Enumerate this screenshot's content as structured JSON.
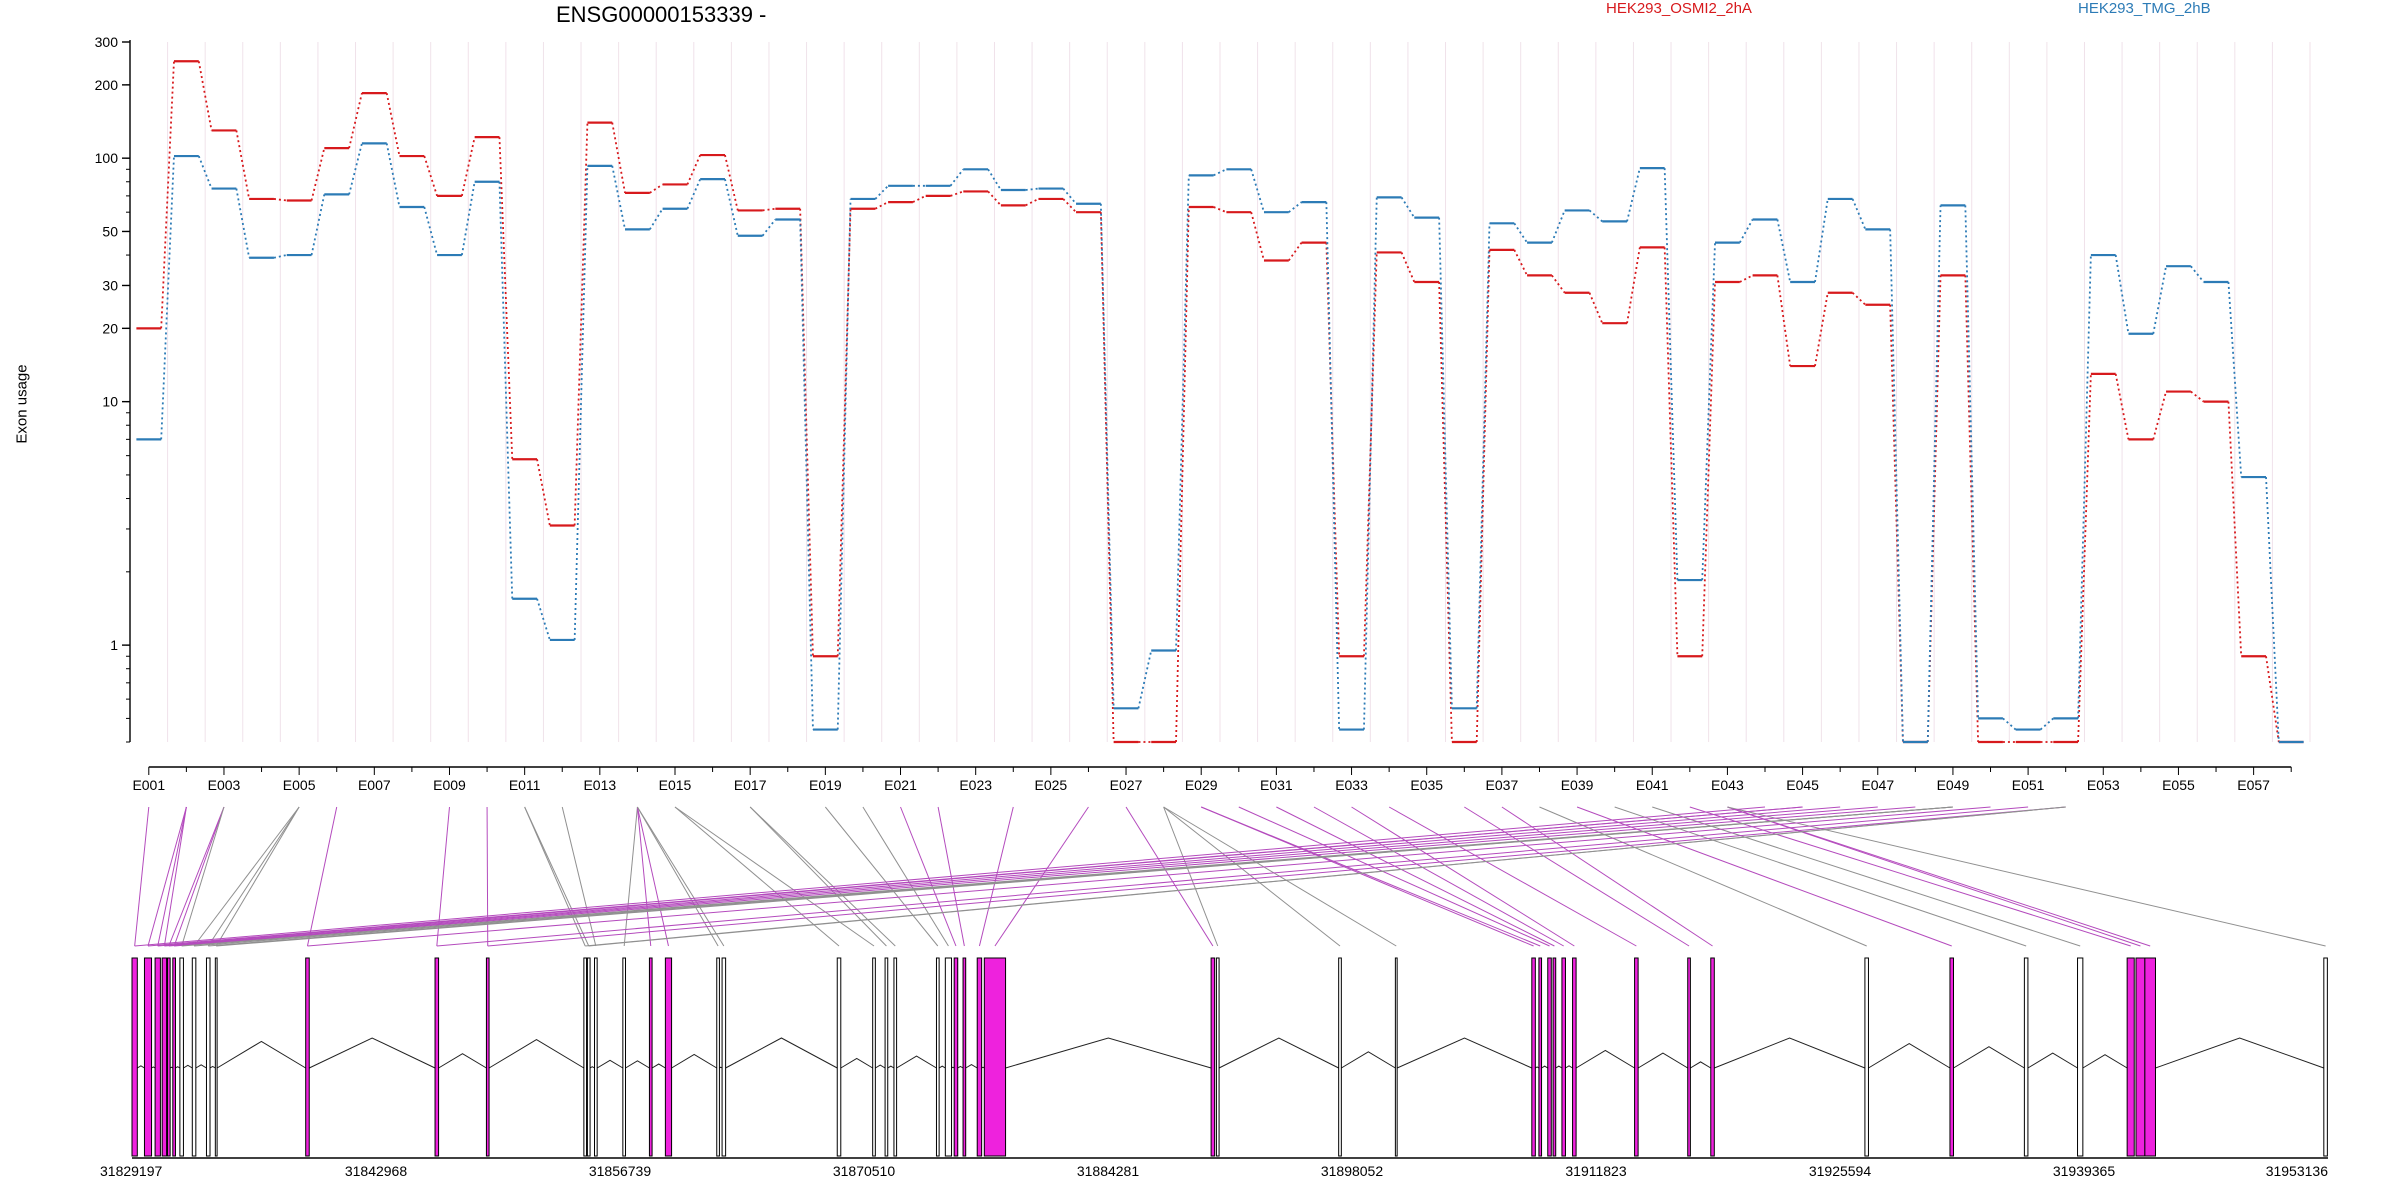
{
  "chart_data": {
    "type": "line",
    "title": "ENSG00000153339 -",
    "ylabel": "Exon usage",
    "xlabel": "",
    "scale_y": "log",
    "ylim": [
      0.4,
      300
    ],
    "y_ticks": [
      1,
      10,
      20,
      30,
      50,
      100,
      200,
      300
    ],
    "y_tick_labels": [
      "1",
      "10",
      "20",
      "30",
      "50",
      "100",
      "200",
      "300"
    ],
    "legend_placement": "top",
    "categories": [
      "E001",
      "E002",
      "E003",
      "E004",
      "E005",
      "E006",
      "E007",
      "E008",
      "E009",
      "E010",
      "E011",
      "E012",
      "E013",
      "E014",
      "E015",
      "E016",
      "E017",
      "E018",
      "E019",
      "E020",
      "E021",
      "E022",
      "E023",
      "E024",
      "E025",
      "E026",
      "E027",
      "E028",
      "E029",
      "E030",
      "E031",
      "E032",
      "E033",
      "E034",
      "E035",
      "E036",
      "E037",
      "E038",
      "E039",
      "E040",
      "E041",
      "E042",
      "E043",
      "E044",
      "E045",
      "E046",
      "E047",
      "E048",
      "E049",
      "E050",
      "E051",
      "E052",
      "E053",
      "E054",
      "E055",
      "E056",
      "E057",
      "E058"
    ],
    "x_tick_labels": [
      "E001",
      "E003",
      "E005",
      "E007",
      "E009",
      "E011",
      "E013",
      "E015",
      "E017",
      "E019",
      "E021",
      "E023",
      "E025",
      "E027",
      "E029",
      "E031",
      "E033",
      "E035",
      "E037",
      "E039",
      "E041",
      "E043",
      "E045",
      "E047",
      "E049",
      "E051",
      "E053",
      "E055",
      "E057"
    ],
    "series": [
      {
        "name": "HEK293_OSMI2_2hA",
        "color": "#d7191c",
        "values": [
          20,
          250,
          130,
          68,
          67,
          110,
          185,
          102,
          70,
          122,
          5.8,
          3.1,
          140,
          72,
          78,
          103,
          61,
          62,
          0.9,
          62,
          66,
          70,
          73,
          64,
          68,
          60,
          0.4,
          0.4,
          63,
          60,
          38,
          45,
          0.9,
          41,
          31,
          0.4,
          42,
          33,
          28,
          21,
          43,
          0.9,
          31,
          33,
          14,
          28,
          25,
          0.4,
          33,
          0.4,
          0.4,
          0.4,
          13,
          7,
          11,
          10,
          0.9,
          0.4
        ]
      },
      {
        "name": "HEK293_TMG_2hB",
        "color": "#2c7bb6",
        "values": [
          7,
          102,
          75,
          39,
          40,
          71,
          115,
          63,
          40,
          80,
          1.55,
          1.05,
          93,
          51,
          62,
          82,
          48,
          56,
          0.45,
          68,
          77,
          77,
          90,
          74,
          75,
          65,
          0.55,
          0.95,
          85,
          90,
          60,
          66,
          0.45,
          69,
          57,
          0.55,
          54,
          45,
          61,
          55,
          91,
          1.85,
          45,
          56,
          31,
          68,
          51,
          0.4,
          64,
          0.5,
          0.45,
          0.5,
          40,
          19,
          36,
          31,
          4.9,
          0.4
        ]
      }
    ],
    "highlight_color": "#ee22dd",
    "genomic_axis_ticks": [
      "31829197",
      "31842968",
      "31856739",
      "31870510",
      "31884281",
      "31898052",
      "31911823",
      "31925594",
      "31939365",
      "31953136"
    ],
    "genomic_range": [
      31829197,
      31953136
    ],
    "exon_starts": [
      31829197,
      31829900,
      31830500,
      31830900,
      31831200,
      31831500,
      31831900,
      31832600,
      31833400,
      31833900,
      31839000,
      31846300,
      31849200,
      31854700,
      31854900,
      31855300,
      31856900,
      31858400,
      31859300,
      31862200,
      31862500,
      31869000,
      31871000,
      31871700,
      31872200,
      31874600,
      31875100,
      31875600,
      31876100,
      31876900,
      31877300,
      31890100,
      31890400,
      31897300,
      31900500,
      31908200,
      31908600,
      31909100,
      31909400,
      31909900,
      31910500,
      31914000,
      31917000,
      31918300,
      31927000,
      31931800,
      31936000,
      31939000,
      31941800,
      31942300,
      31942800,
      31952900
    ],
    "exon_widths": [
      300,
      400,
      300,
      250,
      150,
      150,
      200,
      200,
      200,
      100,
      200,
      200,
      150,
      150,
      150,
      150,
      150,
      150,
      350,
      150,
      200,
      200,
      150,
      150,
      150,
      150,
      350,
      200,
      150,
      250,
      1200,
      200,
      150,
      150,
      100,
      200,
      150,
      200,
      150,
      200,
      200,
      200,
      150,
      200,
      200,
      200,
      200,
      300,
      400,
      500,
      600,
      200
    ],
    "exon_highlight": [
      1,
      1,
      1,
      1,
      1,
      1,
      0,
      0,
      0,
      0,
      1,
      1,
      1,
      0,
      0,
      0,
      0,
      1,
      1,
      0,
      0,
      0,
      0,
      0,
      0,
      0,
      0,
      1,
      1,
      1,
      1,
      1,
      0,
      0,
      0,
      1,
      1,
      1,
      1,
      1,
      1,
      1,
      1,
      1,
      0,
      1,
      0,
      0,
      1,
      1,
      1,
      0
    ],
    "exon_map": [
      [
        0,
        0
      ],
      [
        1,
        1
      ],
      [
        2,
        1
      ],
      [
        3,
        1
      ],
      [
        4,
        2
      ],
      [
        5,
        2
      ],
      [
        6,
        2
      ],
      [
        7,
        4
      ],
      [
        8,
        4
      ],
      [
        9,
        4
      ],
      [
        10,
        5
      ],
      [
        11,
        8
      ],
      [
        12,
        9
      ],
      [
        13,
        10
      ],
      [
        14,
        10
      ],
      [
        15,
        11
      ],
      [
        16,
        13
      ],
      [
        17,
        13
      ],
      [
        18,
        13
      ],
      [
        19,
        13
      ],
      [
        20,
        13
      ],
      [
        21,
        14
      ],
      [
        22,
        14
      ],
      [
        23,
        16
      ],
      [
        24,
        16
      ],
      [
        25,
        18
      ],
      [
        26,
        19
      ],
      [
        27,
        20
      ],
      [
        28,
        21
      ],
      [
        29,
        23
      ],
      [
        30,
        25
      ],
      [
        31,
        26
      ],
      [
        32,
        27
      ],
      [
        33,
        27
      ],
      [
        34,
        27
      ],
      [
        35,
        28
      ],
      [
        36,
        28
      ],
      [
        37,
        29
      ],
      [
        38,
        30
      ],
      [
        39,
        31
      ],
      [
        40,
        32
      ],
      [
        41,
        33
      ],
      [
        42,
        35
      ],
      [
        43,
        36
      ],
      [
        44,
        37
      ],
      [
        45,
        38
      ],
      [
        46,
        39
      ],
      [
        47,
        40
      ],
      [
        48,
        41
      ],
      [
        49,
        42
      ],
      [
        50,
        42
      ],
      [
        51,
        42
      ],
      [
        52,
        43
      ],
      [
        53,
        44
      ],
      [
        54,
        44
      ],
      [
        55,
        45
      ],
      [
        56,
        46
      ],
      [
        57,
        47
      ],
      [
        58,
        48
      ],
      [
        59,
        48
      ],
      [
        60,
        48
      ],
      [
        61,
        48
      ],
      [
        62,
        49
      ],
      [
        63,
        50
      ],
      [
        64,
        51
      ],
      [
        65,
        51
      ],
      [
        66,
        51
      ]
    ]
  }
}
